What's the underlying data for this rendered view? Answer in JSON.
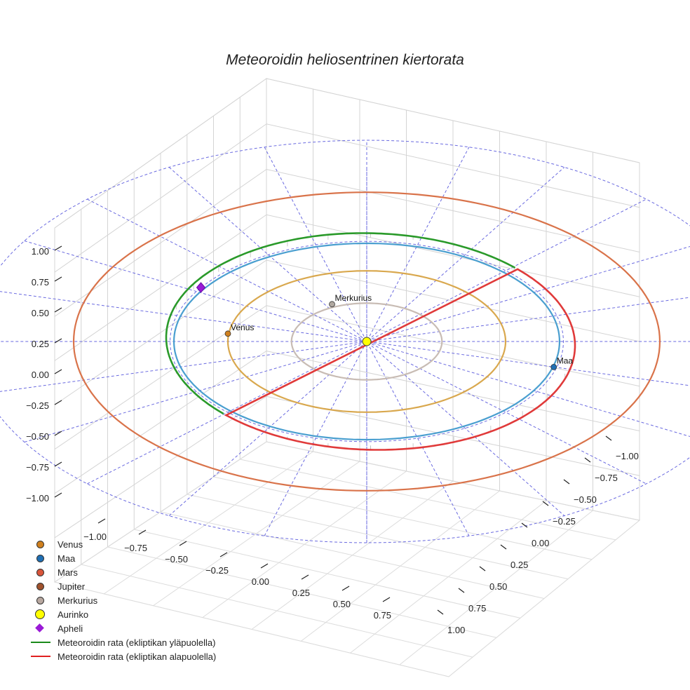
{
  "chart_data": {
    "type": "scatter3d",
    "title": "Meteoroidin heliosentrinen kiertorata",
    "axes": {
      "x": {
        "range": [
          -1.0,
          1.0
        ],
        "ticks": [
          "−1.00",
          "−0.75",
          "−0.50",
          "−0.25",
          "0.00",
          "0.25",
          "0.50",
          "0.75"
        ]
      },
      "y": {
        "range": [
          -1.0,
          1.0
        ],
        "ticks": [
          "−1.00",
          "−0.75",
          "−0.50",
          "−0.25",
          "0.00",
          "0.25",
          "0.50",
          "0.75",
          "1.00"
        ]
      },
      "z": {
        "range": [
          -1.0,
          1.0
        ],
        "ticks": [
          "1.00",
          "0.75",
          "0.50",
          "0.25",
          "0.00",
          "−0.25",
          "−0.50",
          "−0.75",
          "−1.00"
        ]
      }
    },
    "grid": true,
    "planet_orbits": [
      {
        "name": "Merkurius",
        "radius": 0.39,
        "color": "#c8bcb4"
      },
      {
        "name": "Venus",
        "radius": 0.72,
        "color": "#d9a84e"
      },
      {
        "name": "Maa",
        "radius": 1.0,
        "color": "#4a9fd0"
      },
      {
        "name": "Mars",
        "radius": 1.52,
        "color": "#d9734a"
      }
    ],
    "bodies": [
      {
        "name": "Maa",
        "label": "Maa",
        "x": 0.26,
        "y": -0.97,
        "color": "#1f6fb4"
      },
      {
        "name": "Venus",
        "label": "Venus",
        "x": -0.08,
        "y": 0.72,
        "color": "#d0801e"
      },
      {
        "name": "Merkurius",
        "label": "Merkurius",
        "x": -0.38,
        "y": 0.18,
        "color": "#b0a8a0"
      },
      {
        "name": "Aurinko",
        "label": "",
        "x": 0.0,
        "y": 0.0,
        "color": "#ffff00"
      }
    ],
    "meteoroid_orbit": {
      "above_color": "#2a9a2a",
      "below_color": "#e03a3a",
      "aphelion": {
        "x": -0.55,
        "y": 0.86
      }
    },
    "legend": [
      {
        "label": "Venus",
        "symbol": "dot",
        "color": "#d0801e"
      },
      {
        "label": "Maa",
        "symbol": "dot",
        "color": "#1f6fb4"
      },
      {
        "label": "Mars",
        "symbol": "dot",
        "color": "#d9553a"
      },
      {
        "label": "Jupiter",
        "symbol": "dot",
        "color": "#a0522d"
      },
      {
        "label": "Merkurius",
        "symbol": "dot",
        "color": "#b8a8a0"
      },
      {
        "label": "Aurinko",
        "symbol": "sun",
        "color": "#ffff00"
      },
      {
        "label": "Apheli",
        "symbol": "diamond",
        "color": "#9a1ad6"
      },
      {
        "label": "Meteoroidin rata (ekliptikan yläpuolella)",
        "symbol": "line",
        "color": "#1a8a1a"
      },
      {
        "label": "Meteoroidin rata (ekliptikan alapuolella)",
        "symbol": "line",
        "color": "#e02020"
      }
    ],
    "legend_position": "bottom-left"
  }
}
